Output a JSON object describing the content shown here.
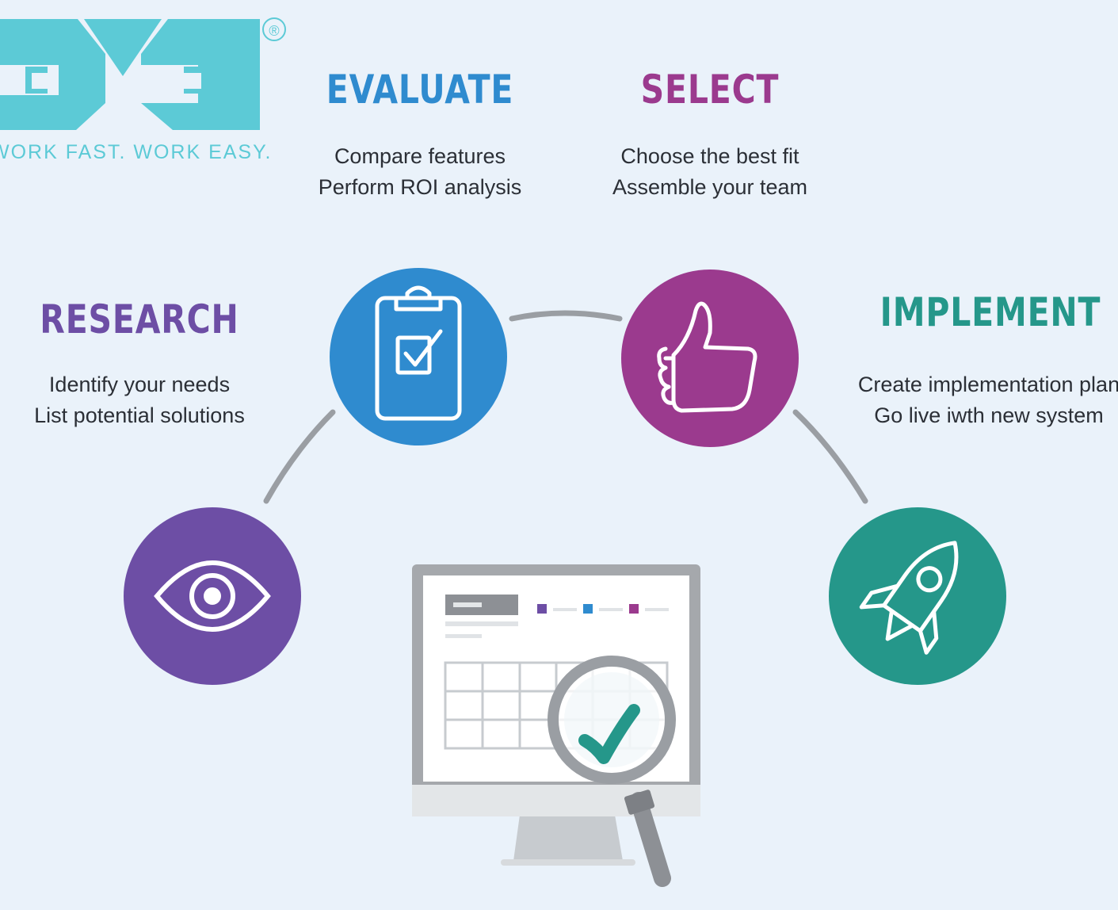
{
  "brand": {
    "tagline": "WORK FAST. WORK EASY.",
    "registered_symbol": "®",
    "color": "#5ccad6"
  },
  "steps": [
    {
      "id": "research",
      "title": "RESEARCH",
      "color": "#6d4ea5",
      "lines": [
        "Identify your needs",
        "List potential solutions"
      ],
      "icon": "eye-icon"
    },
    {
      "id": "evaluate",
      "title": "EVALUATE",
      "color": "#2f8bcf",
      "lines": [
        "Compare features",
        "Perform ROI analysis"
      ],
      "icon": "clipboard-check-icon"
    },
    {
      "id": "select",
      "title": "SELECT",
      "color": "#9b3a8e",
      "lines": [
        "Choose the best fit",
        "Assemble your team"
      ],
      "icon": "thumbs-up-icon"
    },
    {
      "id": "implement",
      "title": "IMPLEMENT",
      "color": "#25978a",
      "lines": [
        "Create implementation plan",
        "Go live iwth new system"
      ],
      "icon": "rocket-icon"
    }
  ],
  "center_illustration": {
    "icon": "monitor-magnifier-check-icon",
    "check_color": "#25978a"
  },
  "connector_color": "#9a9ea3"
}
